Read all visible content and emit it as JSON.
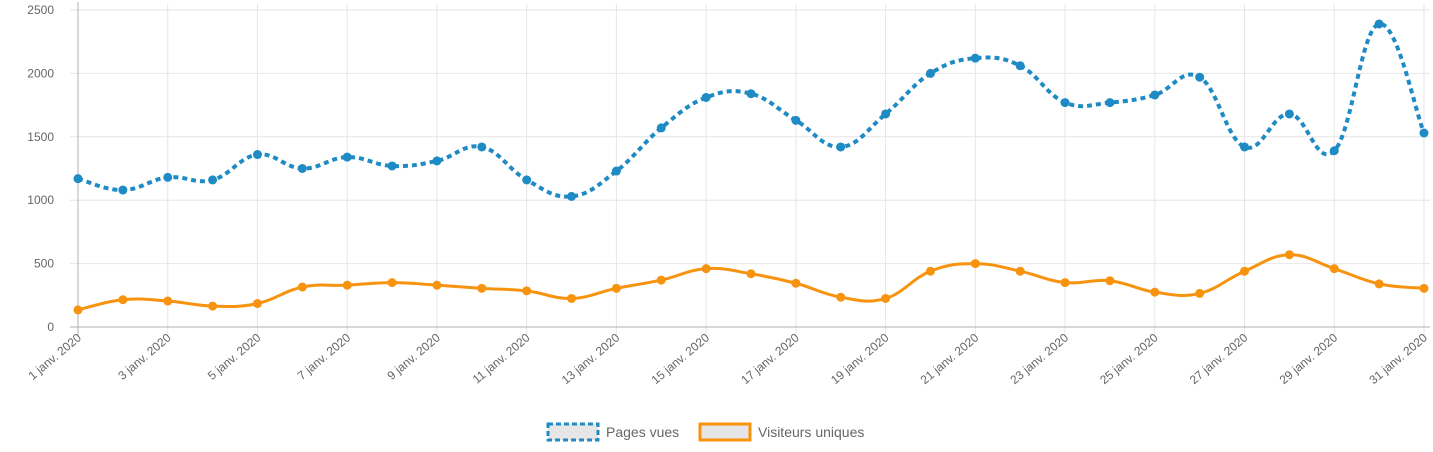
{
  "chart_data": {
    "type": "line",
    "title": "",
    "xlabel": "",
    "ylabel": "",
    "ylim": [
      0,
      2500
    ],
    "y_ticks": [
      "0",
      "500",
      "1000",
      "1500",
      "2000",
      "2500"
    ],
    "categories": [
      "1 janv. 2020",
      "2 janv. 2020",
      "3 janv. 2020",
      "4 janv. 2020",
      "5 janv. 2020",
      "6 janv. 2020",
      "7 janv. 2020",
      "8 janv. 2020",
      "9 janv. 2020",
      "10 janv. 2020",
      "11 janv. 2020",
      "12 janv. 2020",
      "13 janv. 2020",
      "14 janv. 2020",
      "15 janv. 2020",
      "16 janv. 2020",
      "17 janv. 2020",
      "18 janv. 2020",
      "19 janv. 2020",
      "20 janv. 2020",
      "21 janv. 2020",
      "22 janv. 2020",
      "23 janv. 2020",
      "24 janv. 2020",
      "25 janv. 2020",
      "26 janv. 2020",
      "27 janv. 2020",
      "28 janv. 2020",
      "29 janv. 2020",
      "30 janv. 2020",
      "31 janv. 2020"
    ],
    "x_tick_labels": [
      "1 janv. 2020",
      "3 janv. 2020",
      "5 janv. 2020",
      "7 janv. 2020",
      "9 janv. 2020",
      "11 janv. 2020",
      "13 janv. 2020",
      "15 janv. 2020",
      "17 janv. 2020",
      "19 janv. 2020",
      "21 janv. 2020",
      "23 janv. 2020",
      "25 janv. 2020",
      "27 janv. 2020",
      "29 janv. 2020",
      "31 janv. 2020"
    ],
    "series": [
      {
        "name": "Pages vues",
        "color": "#1f8bc4",
        "style": "dashed",
        "values": [
          1170,
          1080,
          1180,
          1160,
          1360,
          1250,
          1340,
          1270,
          1310,
          1420,
          1160,
          1030,
          1230,
          1570,
          1810,
          1840,
          1630,
          1420,
          1680,
          2000,
          2120,
          2060,
          1770,
          1770,
          1830,
          1970,
          1420,
          1680,
          1390,
          2390,
          1530
        ]
      },
      {
        "name": "Visiteurs uniques",
        "color": "#f7930f",
        "style": "solid",
        "values": [
          135,
          215,
          205,
          165,
          185,
          315,
          330,
          350,
          330,
          305,
          285,
          225,
          305,
          370,
          460,
          420,
          345,
          235,
          225,
          440,
          500,
          440,
          350,
          365,
          275,
          265,
          440,
          570,
          460,
          340,
          305
        ]
      }
    ],
    "grid": true,
    "legend_position": "bottom-center"
  }
}
